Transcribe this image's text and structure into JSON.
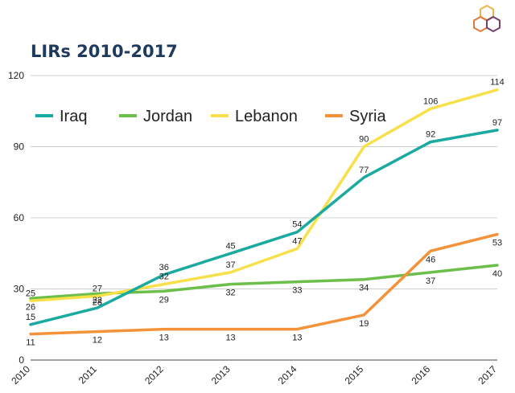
{
  "title": "LIRs 2010-2017",
  "logo": {
    "icon": "hexagon-cluster-logo",
    "colors": [
      "#f2b24c",
      "#e07b39",
      "#7a3e6d"
    ]
  },
  "chart_data": {
    "type": "line",
    "title": "LIRs 2010-2017",
    "xlabel": "",
    "ylabel": "",
    "x": [
      "2010",
      "2011",
      "2012",
      "2013",
      "2014",
      "2015",
      "2016",
      "2017"
    ],
    "ylim": [
      0,
      120
    ],
    "yticks": [
      0,
      30,
      60,
      90,
      120
    ],
    "grid": true,
    "legend_position": "top",
    "series": [
      {
        "name": "Iraq",
        "color": "#1aaa9f",
        "values": [
          15,
          22,
          36,
          45,
          54,
          77,
          92,
          97
        ]
      },
      {
        "name": "Jordan",
        "color": "#6cbf4a",
        "values": [
          26,
          28,
          29,
          32,
          33,
          34,
          37,
          40
        ]
      },
      {
        "name": "Lebanon",
        "color": "#f7e04a",
        "values": [
          25,
          27,
          32,
          37,
          47,
          90,
          106,
          114
        ]
      },
      {
        "name": "Syria",
        "color": "#f4923a",
        "values": [
          11,
          12,
          13,
          13,
          13,
          19,
          46,
          53
        ]
      }
    ]
  }
}
